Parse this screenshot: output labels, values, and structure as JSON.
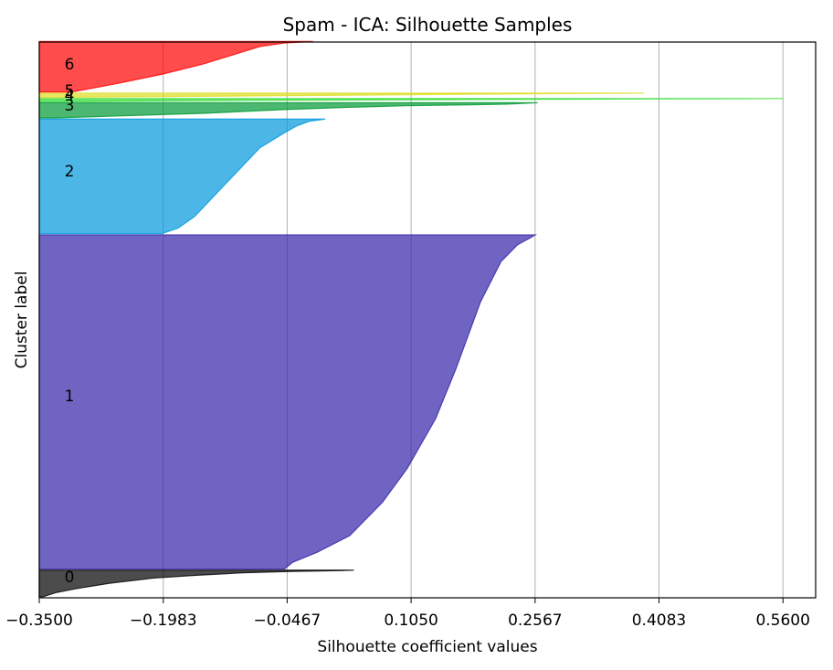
{
  "chart_data": {
    "type": "area",
    "title": "Spam - ICA: Silhouette Samples",
    "xlabel": "Silhouette coefficient values",
    "ylabel": "Cluster label",
    "xlim": [
      -0.35,
      0.6
    ],
    "ylim": [
      0,
      4900
    ],
    "xticks": [
      "−0.3500",
      "−0.1983",
      "−0.0467",
      "0.1050",
      "0.2567",
      "0.4083",
      "0.5600"
    ],
    "xtick_values": [
      -0.35,
      -0.1983,
      -0.0467,
      0.105,
      0.2567,
      0.4083,
      0.56
    ],
    "grid": "x",
    "clusters": [
      {
        "label": "0",
        "color": "#000000",
        "y_lower": 10,
        "y_upper": 244,
        "profile": [
          [
            0,
            0.035
          ],
          [
            0.02,
            0.02
          ],
          [
            0.05,
            -0.04
          ],
          [
            0.1,
            -0.1
          ],
          [
            0.2,
            -0.16
          ],
          [
            0.3,
            -0.21
          ],
          [
            0.5,
            -0.265
          ],
          [
            0.7,
            -0.305
          ],
          [
            0.85,
            -0.33
          ],
          [
            1,
            -0.345
          ]
        ]
      },
      {
        "label": "1",
        "color": "#3322aa",
        "y_lower": 254,
        "y_upper": 3200,
        "profile": [
          [
            0,
            0.2567
          ],
          [
            0.01,
            0.25
          ],
          [
            0.03,
            0.235
          ],
          [
            0.08,
            0.215
          ],
          [
            0.2,
            0.19
          ],
          [
            0.4,
            0.16
          ],
          [
            0.55,
            0.135
          ],
          [
            0.7,
            0.1
          ],
          [
            0.8,
            0.07
          ],
          [
            0.9,
            0.03
          ],
          [
            0.95,
            -0.01
          ],
          [
            0.98,
            -0.04
          ],
          [
            1,
            -0.05
          ]
        ]
      },
      {
        "label": "2",
        "color": "#0099dd",
        "y_lower": 3210,
        "y_upper": 4221,
        "profile": [
          [
            0,
            0.0
          ],
          [
            0.02,
            -0.02
          ],
          [
            0.06,
            -0.035
          ],
          [
            0.12,
            -0.05
          ],
          [
            0.25,
            -0.08
          ],
          [
            0.4,
            -0.1
          ],
          [
            0.55,
            -0.12
          ],
          [
            0.7,
            -0.14
          ],
          [
            0.85,
            -0.16
          ],
          [
            0.95,
            -0.18
          ],
          [
            1,
            -0.2
          ]
        ]
      },
      {
        "label": "3",
        "color": "#009933",
        "y_lower": 4231,
        "y_upper": 4365,
        "profile": [
          [
            0,
            0.26
          ],
          [
            0.1,
            0.22
          ],
          [
            0.2,
            0.1
          ],
          [
            0.3,
            0.03
          ],
          [
            0.45,
            -0.05
          ],
          [
            0.7,
            -0.15
          ],
          [
            1,
            -0.33
          ]
        ]
      },
      {
        "label": "4",
        "color": "#33dd33",
        "y_lower": 4375,
        "y_upper": 4402,
        "profile": [
          [
            0,
            0.56
          ],
          [
            0.3,
            0.2
          ],
          [
            0.6,
            -0.1
          ],
          [
            1,
            -0.33
          ]
        ]
      },
      {
        "label": "5",
        "color": "#dddd22",
        "y_lower": 4412,
        "y_upper": 4450,
        "profile": [
          [
            0,
            0.39
          ],
          [
            0.3,
            0.15
          ],
          [
            0.6,
            -0.05
          ],
          [
            1,
            -0.33
          ]
        ]
      },
      {
        "label": "6",
        "color": "#ff0000",
        "y_lower": 4460,
        "y_upper": 4905,
        "profile": [
          [
            0,
            -0.015
          ],
          [
            0.03,
            -0.05
          ],
          [
            0.1,
            -0.08
          ],
          [
            0.25,
            -0.11
          ],
          [
            0.45,
            -0.15
          ],
          [
            0.65,
            -0.2
          ],
          [
            0.85,
            -0.26
          ],
          [
            1,
            -0.31
          ]
        ]
      }
    ]
  }
}
